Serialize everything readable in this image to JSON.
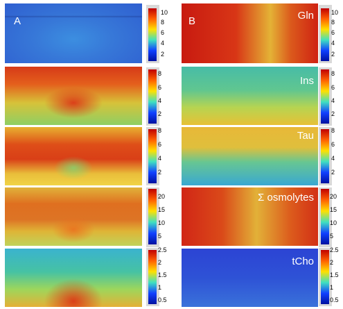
{
  "panels": {
    "A": "A",
    "B": "B"
  },
  "rows": [
    {
      "metabolite": "Gln",
      "ticks": [
        "10",
        "8",
        "6",
        "4",
        "2"
      ]
    },
    {
      "metabolite": "Ins",
      "ticks_A": [
        "8",
        "6",
        "4",
        "2"
      ],
      "ticks_B": [
        "8",
        "6",
        "4",
        "2"
      ]
    },
    {
      "metabolite": "Tau",
      "ticks_A": [
        "8",
        "6",
        "4",
        "2"
      ],
      "ticks_B": [
        "8",
        "6",
        "4",
        "2"
      ]
    },
    {
      "metabolite": "Σ osmolytes",
      "ticks_A": [
        "20",
        "15",
        "10",
        "5"
      ],
      "ticks_B": [
        "20",
        "15",
        "10",
        "5"
      ]
    },
    {
      "metabolite": "tCho",
      "ticks_A": [
        "2.5",
        "2",
        "1.5",
        "1",
        "0.5"
      ],
      "ticks_B": [
        "2.5",
        "2",
        "1.5",
        "1",
        "0.5"
      ]
    }
  ],
  "colors": {
    "low": "#1c3cd8",
    "mid": "#3fc0c0",
    "high_mid": "#e8d020",
    "high": "#d02010",
    "colorbar_bg": "#d9d9d9"
  }
}
